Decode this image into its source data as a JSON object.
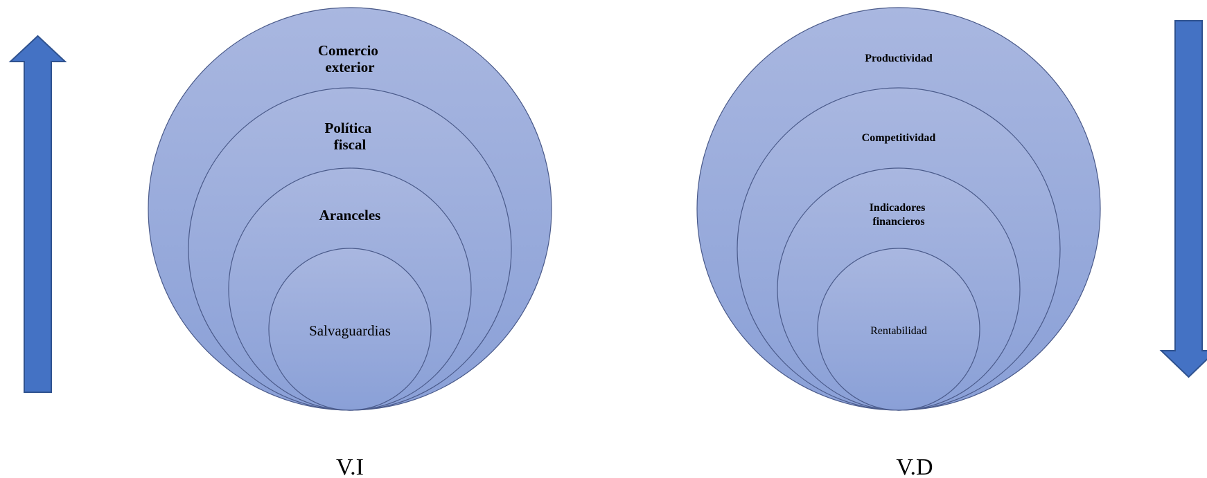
{
  "colors": {
    "circle_fill_top": "#a9b7e0",
    "circle_fill_bottom": "#8aa0d7",
    "circle_stroke": "#4a5a8a",
    "arrow_fill": "#4472c4",
    "arrow_stroke": "#2f528f"
  },
  "left_group": {
    "circles": [
      {
        "text_lines": [
          "Comercio",
          "exterior"
        ]
      },
      {
        "text_lines": [
          "Política",
          "fiscal"
        ]
      },
      {
        "text_lines": [
          "Aranceles"
        ]
      },
      {
        "text_lines": [
          "Salvaguardias"
        ]
      }
    ],
    "caption": "V.I",
    "arrow_direction": "up"
  },
  "right_group": {
    "circles": [
      {
        "text_lines": [
          "Productividad"
        ]
      },
      {
        "text_lines": [
          "Competitividad"
        ]
      },
      {
        "text_lines": [
          "Indicadores",
          "financieros"
        ]
      },
      {
        "text_lines": [
          "Rentabilidad"
        ]
      }
    ],
    "caption": "V.D",
    "arrow_direction": "down"
  }
}
